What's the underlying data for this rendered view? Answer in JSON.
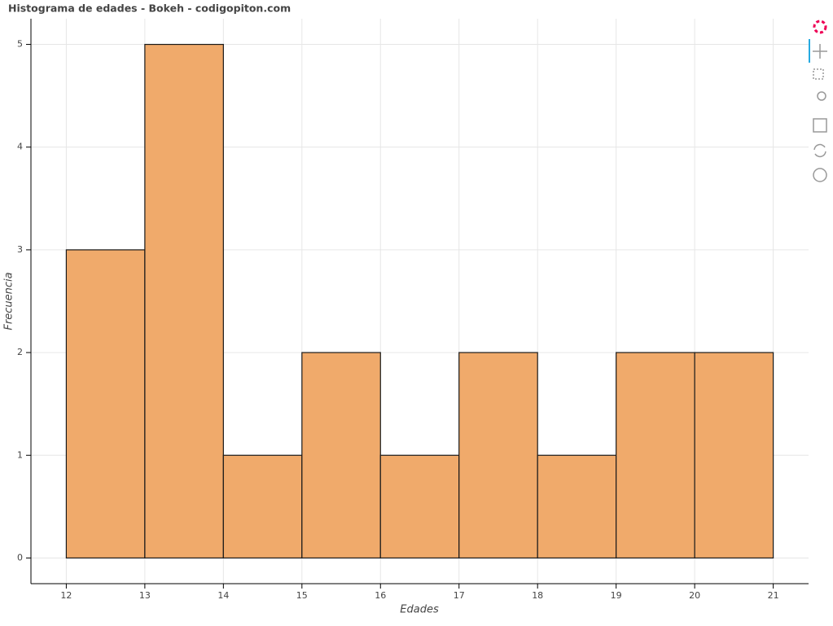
{
  "chart_data": {
    "type": "histogram",
    "title": "Histograma de edades - Bokeh - codigopiton.com",
    "x_label": "Edades",
    "y_label": "Frecuencia",
    "bins": [
      12,
      13,
      14,
      15,
      16,
      17,
      18,
      19,
      20,
      21
    ],
    "values": [
      3,
      5,
      1,
      2,
      1,
      2,
      1,
      2,
      2
    ],
    "color": "#f0aa6b",
    "edge_color": "#1a1a1a",
    "xlim": [
      11.55,
      21.45
    ],
    "ylim": [
      -0.25,
      5.25
    ],
    "xticks": [
      12,
      13,
      14,
      15,
      16,
      17,
      18,
      19,
      20,
      21
    ],
    "yticks": [
      0,
      1,
      2,
      3,
      4,
      5
    ],
    "grid": true
  }
}
